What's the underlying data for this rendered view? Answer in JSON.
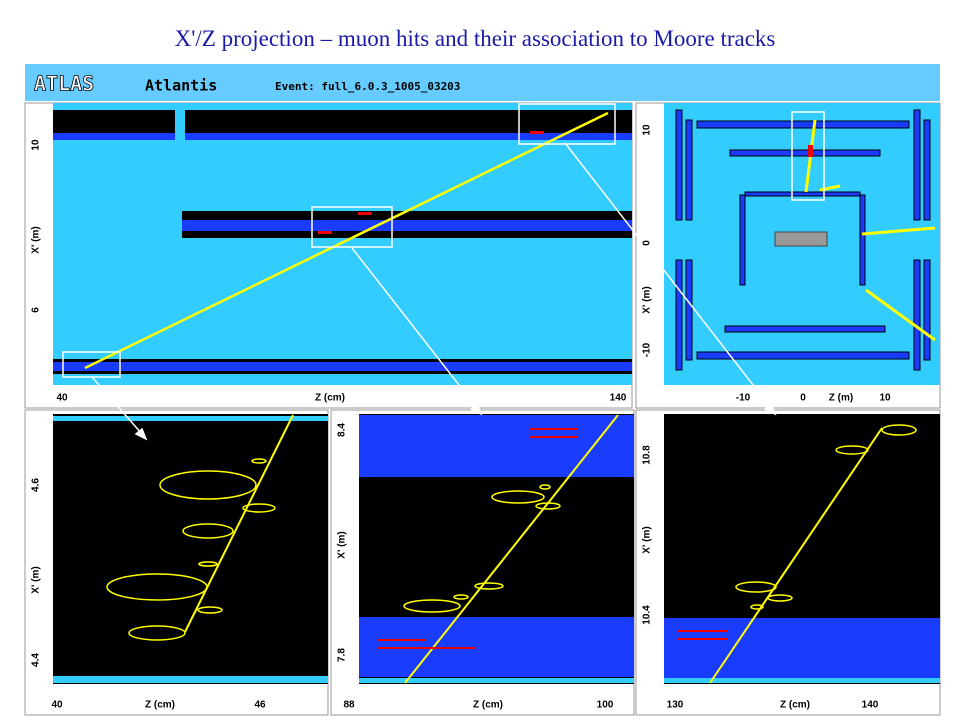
{
  "title": "X'/Z projection – muon hits and their association to Moore tracks",
  "header": {
    "logo": "ATLAS",
    "app": "Atlantis",
    "event": "Event: full_6.0.3_1005_03203"
  },
  "panels": [
    {
      "x_label": "Z (cm)",
      "y_label": "X' (m)",
      "x_ticks": [
        "40",
        "140"
      ],
      "y_ticks": [
        "10",
        "6"
      ]
    },
    {
      "x_label": "Z (m)",
      "y_label": "X' (m)",
      "x_ticks": [
        "-10",
        "0",
        "10"
      ],
      "y_ticks": [
        "10",
        "0",
        "-10"
      ]
    },
    {
      "x_label": "Z (cm)",
      "y_label": "X' (m)",
      "x_ticks": [
        "40",
        "46"
      ],
      "y_ticks": [
        "4.6",
        "4.4"
      ]
    },
    {
      "x_label": "Z (cm)",
      "y_label": "X' (m)",
      "x_ticks": [
        "88",
        "100"
      ],
      "y_ticks": [
        "8.4",
        "7.8"
      ]
    },
    {
      "x_label": "Z (cm)",
      "y_label": "X' (m)",
      "x_ticks": [
        "130",
        "140"
      ],
      "y_ticks": [
        "10.8",
        "10.4"
      ]
    }
  ]
}
